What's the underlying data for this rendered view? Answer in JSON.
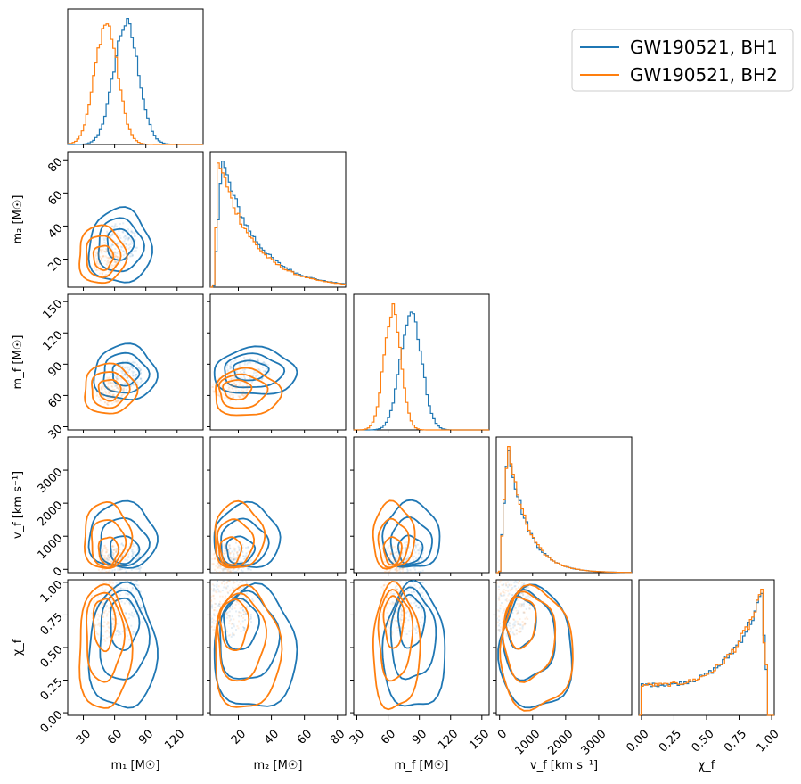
{
  "chart_data": {
    "type": "corner",
    "variables": [
      {
        "key": "m1",
        "label": "m₁ [M☉]",
        "range": [
          15,
          145
        ],
        "ticks": [
          30,
          60,
          90,
          120
        ],
        "tick_labels": [
          "30",
          "60",
          "90",
          "120"
        ]
      },
      {
        "key": "m2",
        "label": "m₂ [M☉]",
        "range": [
          3,
          85
        ],
        "ticks": [
          20,
          40,
          60,
          80
        ],
        "tick_labels": [
          "20",
          "40",
          "60",
          "80"
        ]
      },
      {
        "key": "mf",
        "label": "m_f [M☉]",
        "range": [
          27,
          157
        ],
        "ticks": [
          30,
          60,
          90,
          120,
          150
        ],
        "tick_labels": [
          "30",
          "60",
          "90",
          "120",
          "150"
        ]
      },
      {
        "key": "vf",
        "label": "v_f [km s⁻¹]",
        "range": [
          -100,
          4000
        ],
        "ticks": [
          0,
          1000,
          2000,
          3000
        ],
        "tick_labels": [
          "0",
          "1000",
          "2000",
          "3000"
        ]
      },
      {
        "key": "chif",
        "label": "χ_f",
        "range": [
          -0.02,
          1.02
        ],
        "ticks": [
          0.0,
          0.25,
          0.5,
          0.75,
          1.0
        ],
        "tick_labels": [
          "0.00",
          "0.25",
          "0.50",
          "0.75",
          "1.00"
        ]
      }
    ],
    "series": [
      {
        "name": "GW190521, BH1",
        "color": "#1f77b4",
        "marginals": {
          "m1": {
            "mode": 71,
            "sd": 12
          },
          "m2": {
            "shape": "decaying",
            "peak": 10
          },
          "mf": {
            "mode": 82,
            "sd": 10
          },
          "vf": {
            "shape": "decaying",
            "peak": 250
          },
          "chif": {
            "shape": "rising",
            "peak": 0.93
          }
        },
        "pairs": {
          "m1-m2": {
            "center": [
              65,
              30
            ],
            "extent": [
              [
                35,
                95
              ],
              [
                5,
                50
              ]
            ]
          },
          "m1-mf": {
            "center": [
              70,
              80
            ],
            "extent": [
              [
                40,
                100
              ],
              [
                55,
                108
              ]
            ]
          },
          "m2-mf": {
            "center": [
              25,
              85
            ],
            "extent": [
              [
                5,
                55
              ],
              [
                60,
                105
              ]
            ]
          },
          "m1-vf": {
            "center": [
              70,
              300
            ],
            "extent": [
              [
                35,
                100
              ],
              [
                0,
                2000
              ]
            ]
          },
          "m2-vf": {
            "center": [
              18,
              300
            ],
            "extent": [
              [
                5,
                45
              ],
              [
                0,
                1950
              ]
            ]
          },
          "mf-vf": {
            "center": [
              80,
              300
            ],
            "extent": [
              [
                55,
                110
              ],
              [
                0,
                2000
              ]
            ]
          },
          "m1-chif": {
            "center": [
              70,
              0.82
            ],
            "extent": [
              [
                35,
                100
              ],
              [
                0.02,
                0.97
              ]
            ]
          },
          "m2-chif": {
            "center": [
              15,
              0.82
            ],
            "extent": [
              [
                5,
                55
              ],
              [
                0.02,
                0.95
              ]
            ]
          },
          "mf-chif": {
            "center": [
              80,
              0.85
            ],
            "extent": [
              [
                55,
                115
              ],
              [
                0.02,
                0.97
              ]
            ]
          },
          "vf-chif": {
            "center": [
              300,
              0.85
            ],
            "extent": [
              [
                0,
                2200
              ],
              [
                0.02,
                0.95
              ]
            ]
          }
        }
      },
      {
        "name": "GW190521, BH2",
        "color": "#ff7f0e",
        "marginals": {
          "m1": {
            "mode": 52,
            "sd": 11
          },
          "m2": {
            "shape": "decaying",
            "peak": 8
          },
          "mf": {
            "mode": 64,
            "sd": 8
          },
          "vf": {
            "shape": "decaying",
            "peak": 250
          },
          "chif": {
            "shape": "rising",
            "peak": 0.93
          }
        },
        "pairs": {
          "m1-m2": {
            "center": [
              50,
              20
            ],
            "extent": [
              [
                25,
                70
              ],
              [
                5,
                40
              ]
            ]
          },
          "m1-mf": {
            "center": [
              55,
              65
            ],
            "extent": [
              [
                30,
                80
              ],
              [
                42,
                90
              ]
            ]
          },
          "m2-mf": {
            "center": [
              15,
              68
            ],
            "extent": [
              [
                5,
                45
              ],
              [
                40,
                85
              ]
            ]
          },
          "m1-vf": {
            "center": [
              55,
              250
            ],
            "extent": [
              [
                30,
                75
              ],
              [
                0,
                2000
              ]
            ]
          },
          "m2-vf": {
            "center": [
              12,
              250
            ],
            "extent": [
              [
                5,
                35
              ],
              [
                0,
                2000
              ]
            ]
          },
          "mf-vf": {
            "center": [
              64,
              250
            ],
            "extent": [
              [
                45,
                85
              ],
              [
                0,
                2000
              ]
            ]
          },
          "m1-chif": {
            "center": [
              50,
              0.82
            ],
            "extent": [
              [
                25,
                75
              ],
              [
                0.02,
                0.97
              ]
            ]
          },
          "m2-chif": {
            "center": [
              12,
              0.82
            ],
            "extent": [
              [
                5,
                45
              ],
              [
                0.02,
                0.95
              ]
            ]
          },
          "mf-chif": {
            "center": [
              64,
              0.85
            ],
            "extent": [
              [
                45,
                90
              ],
              [
                0.02,
                0.97
              ]
            ]
          },
          "vf-chif": {
            "center": [
              300,
              0.85
            ],
            "extent": [
              [
                0,
                2200
              ],
              [
                0.02,
                0.95
              ]
            ]
          }
        }
      }
    ],
    "legend": {
      "position": "top-right",
      "entries": [
        "GW190521, BH1",
        "GW190521, BH2"
      ]
    }
  }
}
